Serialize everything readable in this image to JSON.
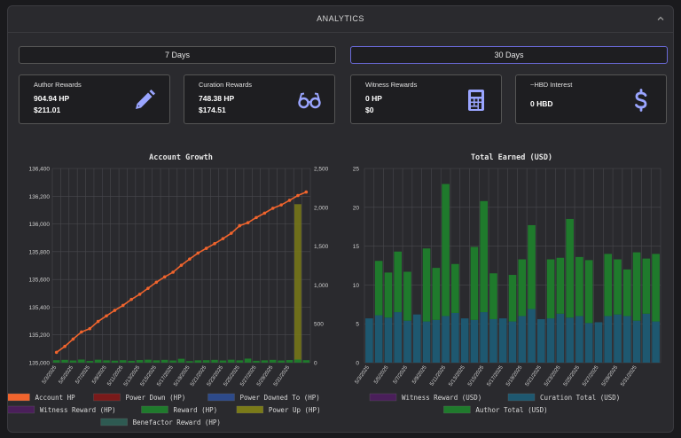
{
  "header": {
    "title": "ANALYTICS"
  },
  "range_buttons": [
    {
      "label": "7 Days",
      "active": false
    },
    {
      "label": "30 Days",
      "active": true
    }
  ],
  "cards": [
    {
      "title": "Author Rewards",
      "value1": "904.94 HP",
      "value2": "$211.01",
      "icon": "pencil-icon"
    },
    {
      "title": "Curation Rewards",
      "value1": "748.38 HP",
      "value2": "$174.51",
      "icon": "glasses-icon"
    },
    {
      "title": "Witness Rewards",
      "value1": "0 HP",
      "value2": "$0",
      "icon": "calculator-icon"
    },
    {
      "title": "~HBD Interest",
      "value1": "0 HBD",
      "value2": "",
      "icon": "dollar-icon"
    }
  ],
  "colors": {
    "accent": "#6a6ad8",
    "icon": "#9aa5ff",
    "account": "#f0642d",
    "reward": "#1f7a2c",
    "powerup": "#8a8a1a",
    "curation": "#1e5870",
    "witness": "#4a1f5a"
  },
  "chart_data": [
    {
      "type": "line",
      "title": "Account Growth",
      "x": [
        "5/3/2025",
        "5/4/2025",
        "5/5/2025",
        "5/6/2025",
        "5/7/2025",
        "5/8/2025",
        "5/9/2025",
        "5/10/2025",
        "5/11/2025",
        "5/12/2025",
        "5/13/2025",
        "5/14/2025",
        "5/15/2025",
        "5/16/2025",
        "5/17/2025",
        "5/18/2025",
        "5/19/2025",
        "5/20/2025",
        "5/21/2025",
        "5/22/2025",
        "5/23/2025",
        "5/24/2025",
        "5/25/2025",
        "5/26/2025",
        "5/27/2025",
        "5/28/2025",
        "5/29/2025",
        "5/30/2025",
        "5/31/2025",
        "6/1/2025",
        "6/2/2025"
      ],
      "xtick_labels": [
        "5/3/2025",
        "",
        "5/5/2025",
        "",
        "5/7/2025",
        "",
        "5/9/2025",
        "",
        "5/11/2025",
        "",
        "5/13/2025",
        "",
        "5/15/2025",
        "",
        "5/17/2025",
        "",
        "5/19/2025",
        "",
        "5/21/2025",
        "",
        "5/23/2025",
        "",
        "5/25/2025",
        "",
        "5/27/2025",
        "",
        "5/29/2025",
        "",
        "5/31/2025",
        "",
        ""
      ],
      "ylim_left": [
        135000,
        136400
      ],
      "yticks_left": [
        "135,000",
        "135,200",
        "135,400",
        "135,600",
        "135,800",
        "136,000",
        "136,200",
        "136,400"
      ],
      "ylim_right": [
        0,
        2500
      ],
      "yticks_right": [
        "0",
        "500",
        "1,000",
        "1,500",
        "2,000",
        "2,500"
      ],
      "series": [
        {
          "name": "Account HP",
          "axis": "left",
          "kind": "line",
          "values": [
            135074,
            135117,
            135170,
            135221,
            135245,
            135297,
            135337,
            135377,
            135413,
            135456,
            135493,
            135536,
            135580,
            135618,
            135652,
            135702,
            135747,
            135790,
            135824,
            135858,
            135894,
            135933,
            135987,
            136009,
            136046,
            136078,
            136113,
            136137,
            136170,
            136205,
            136230
          ]
        },
        {
          "name": "Reward (HP)",
          "axis": "right",
          "kind": "bar",
          "values": [
            32,
            36,
            28,
            40,
            22,
            38,
            30,
            26,
            32,
            24,
            34,
            38,
            30,
            36,
            28,
            50,
            20,
            30,
            32,
            36,
            28,
            38,
            30,
            52,
            24,
            30,
            36,
            28,
            34,
            40,
            32
          ]
        },
        {
          "name": "Power Up (HP)",
          "axis": "right",
          "kind": "bar",
          "values": [
            0,
            0,
            0,
            0,
            0,
            0,
            0,
            0,
            0,
            0,
            0,
            0,
            0,
            0,
            0,
            0,
            0,
            0,
            0,
            0,
            0,
            0,
            0,
            0,
            0,
            0,
            0,
            0,
            0,
            2040,
            0
          ]
        }
      ],
      "legend": [
        {
          "name": "Account HP",
          "color": "#f0642d"
        },
        {
          "name": "Power Down (HP)",
          "color": "#7a1a1a"
        },
        {
          "name": "Power Downed To (HP)",
          "color": "#2d4a8a"
        },
        {
          "name": "Witness Reward (HP)",
          "color": "#4a1f5a"
        },
        {
          "name": "Reward (HP)",
          "color": "#1f7a2c"
        },
        {
          "name": "Power Up (HP)",
          "color": "#7a7a18"
        },
        {
          "name": "Benefactor Reward (HP)",
          "color": "#2e5a52"
        }
      ],
      "legend_placement": "bottom",
      "grid": true
    },
    {
      "type": "bar",
      "title": "Total Earned (USD)",
      "x": [
        "5/3/2025",
        "5/4/2025",
        "5/5/2025",
        "5/6/2025",
        "5/7/2025",
        "5/8/2025",
        "5/9/2025",
        "5/10/2025",
        "5/11/2025",
        "5/12/2025",
        "5/13/2025",
        "5/14/2025",
        "5/15/2025",
        "5/16/2025",
        "5/17/2025",
        "5/18/2025",
        "5/19/2025",
        "5/20/2025",
        "5/21/2025",
        "5/22/2025",
        "5/23/2025",
        "5/24/2025",
        "5/25/2025",
        "5/26/2025",
        "5/27/2025",
        "5/28/2025",
        "5/29/2025",
        "5/30/2025",
        "5/31/2025",
        "6/1/2025",
        "6/2/2025"
      ],
      "xtick_labels": [
        "5/3/2025",
        "",
        "5/5/2025",
        "",
        "5/7/2025",
        "",
        "5/9/2025",
        "",
        "5/11/2025",
        "",
        "5/13/2025",
        "",
        "5/15/2025",
        "",
        "5/17/2025",
        "",
        "5/19/2025",
        "",
        "5/21/2025",
        "",
        "5/23/2025",
        "",
        "5/25/2025",
        "",
        "5/27/2025",
        "",
        "5/29/2025",
        "",
        "5/31/2025",
        "",
        ""
      ],
      "ylim": [
        0,
        25
      ],
      "yticks": [
        "0",
        "5",
        "10",
        "15",
        "20",
        "25"
      ],
      "stacked": true,
      "series": [
        {
          "name": "Witness Reward (USD)",
          "values": [
            0,
            0,
            0,
            0,
            0,
            0,
            0,
            0,
            0,
            0,
            0,
            0,
            0,
            0,
            0,
            0,
            0,
            0,
            0,
            0,
            0,
            0,
            0,
            0,
            0,
            0,
            0,
            0,
            0,
            0,
            0
          ]
        },
        {
          "name": "Curation Total (USD)",
          "values": [
            5.7,
            6.1,
            5.8,
            6.5,
            5.4,
            6.2,
            5.3,
            5.5,
            6.0,
            6.4,
            5.7,
            5.5,
            6.5,
            5.6,
            5.7,
            5.3,
            6.0,
            6.9,
            5.6,
            5.7,
            6.3,
            5.8,
            6.0,
            5.1,
            5.2,
            6.0,
            6.2,
            6.0,
            5.4,
            6.3,
            5.3
          ]
        },
        {
          "name": "Author Total (USD)",
          "values": [
            0,
            7.0,
            5.8,
            7.8,
            6.3,
            0,
            9.4,
            6.7,
            17.0,
            6.3,
            0,
            9.4,
            14.3,
            5.9,
            0,
            6.0,
            7.3,
            10.8,
            0,
            7.6,
            7.2,
            12.7,
            7.6,
            8.1,
            0,
            8.0,
            7.1,
            6.0,
            8.8,
            7.1,
            8.7
          ]
        }
      ],
      "legend": [
        {
          "name": "Witness Reward (USD)",
          "color": "#4a1f5a"
        },
        {
          "name": "Curation Total (USD)",
          "color": "#1e5870"
        },
        {
          "name": "Author Total (USD)",
          "color": "#1f7a2c"
        }
      ],
      "legend_placement": "bottom",
      "grid": true
    }
  ]
}
